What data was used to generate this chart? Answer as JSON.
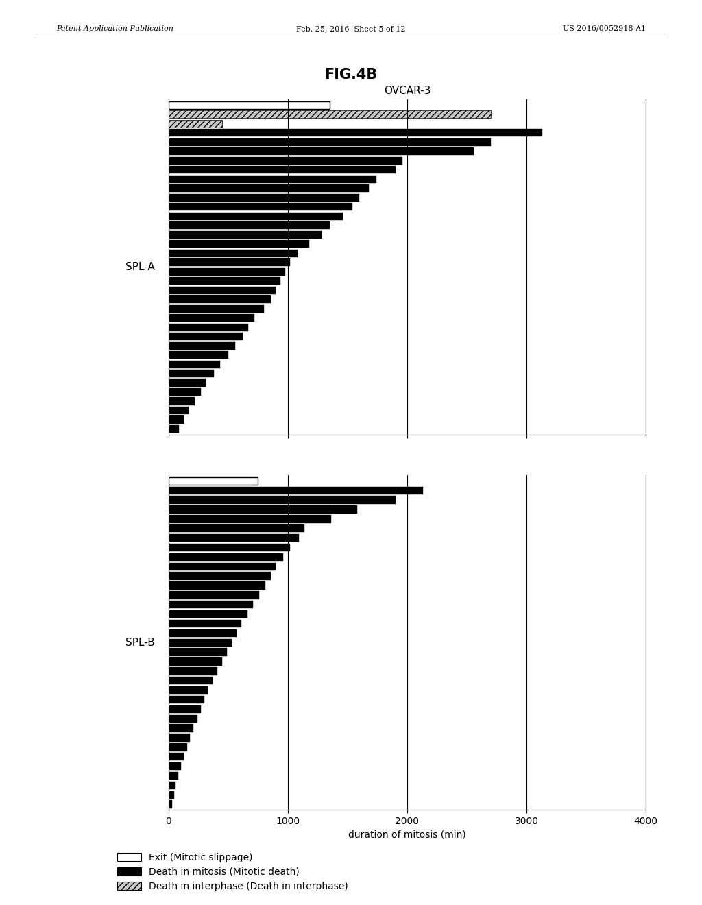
{
  "fig_title": "FIG.4B",
  "chart_title": "OVCAR-3",
  "xlabel": "duration of mitosis (min)",
  "xlim": [
    0,
    4000
  ],
  "xticks": [
    0,
    1000,
    2000,
    3000,
    4000
  ],
  "vlines": [
    1000,
    2000,
    3000,
    4000
  ],
  "header_text_left": "Patent Application Publication",
  "header_text_mid": "Feb. 25, 2016  Sheet 5 of 12",
  "header_text_right": "US 2016/0052918 A1",
  "spla_label": "SPL-A",
  "splb_label": "SPL-B",
  "legend": [
    {
      "label": "Exit (Mitotic slippage)",
      "color": "white",
      "hatch": null
    },
    {
      "label": "Death in mitosis (Mitotic death)",
      "color": "black",
      "hatch": null
    },
    {
      "label": "Death in interphase (Death in interphase)",
      "color": "#c8c8c8",
      "hatch": "////"
    }
  ],
  "spla_bars": [
    {
      "value": 1350,
      "type": "white"
    },
    {
      "value": 2700,
      "type": "gray"
    },
    {
      "value": 450,
      "type": "gray"
    },
    {
      "value": 3130,
      "type": "black"
    },
    {
      "value": 2700,
      "type": "black"
    },
    {
      "value": 2560,
      "type": "black"
    },
    {
      "value": 1960,
      "type": "black"
    },
    {
      "value": 1900,
      "type": "black"
    },
    {
      "value": 1740,
      "type": "black"
    },
    {
      "value": 1680,
      "type": "black"
    },
    {
      "value": 1600,
      "type": "black"
    },
    {
      "value": 1540,
      "type": "black"
    },
    {
      "value": 1460,
      "type": "black"
    },
    {
      "value": 1350,
      "type": "black"
    },
    {
      "value": 1280,
      "type": "black"
    },
    {
      "value": 1180,
      "type": "black"
    },
    {
      "value": 1080,
      "type": "black"
    },
    {
      "value": 1020,
      "type": "black"
    },
    {
      "value": 980,
      "type": "black"
    },
    {
      "value": 940,
      "type": "black"
    },
    {
      "value": 900,
      "type": "black"
    },
    {
      "value": 860,
      "type": "black"
    },
    {
      "value": 800,
      "type": "black"
    },
    {
      "value": 720,
      "type": "black"
    },
    {
      "value": 670,
      "type": "black"
    },
    {
      "value": 620,
      "type": "black"
    },
    {
      "value": 560,
      "type": "black"
    },
    {
      "value": 500,
      "type": "black"
    },
    {
      "value": 430,
      "type": "black"
    },
    {
      "value": 380,
      "type": "black"
    },
    {
      "value": 310,
      "type": "black"
    },
    {
      "value": 270,
      "type": "black"
    },
    {
      "value": 220,
      "type": "black"
    },
    {
      "value": 170,
      "type": "black"
    },
    {
      "value": 130,
      "type": "black"
    },
    {
      "value": 90,
      "type": "black"
    }
  ],
  "splb_bars": [
    {
      "value": 750,
      "type": "white"
    },
    {
      "value": 2130,
      "type": "black"
    },
    {
      "value": 1900,
      "type": "black"
    },
    {
      "value": 1580,
      "type": "black"
    },
    {
      "value": 1360,
      "type": "black"
    },
    {
      "value": 1140,
      "type": "black"
    },
    {
      "value": 1090,
      "type": "black"
    },
    {
      "value": 1020,
      "type": "black"
    },
    {
      "value": 960,
      "type": "black"
    },
    {
      "value": 900,
      "type": "black"
    },
    {
      "value": 860,
      "type": "black"
    },
    {
      "value": 810,
      "type": "black"
    },
    {
      "value": 760,
      "type": "black"
    },
    {
      "value": 710,
      "type": "black"
    },
    {
      "value": 660,
      "type": "black"
    },
    {
      "value": 610,
      "type": "black"
    },
    {
      "value": 570,
      "type": "black"
    },
    {
      "value": 530,
      "type": "black"
    },
    {
      "value": 490,
      "type": "black"
    },
    {
      "value": 450,
      "type": "black"
    },
    {
      "value": 410,
      "type": "black"
    },
    {
      "value": 370,
      "type": "black"
    },
    {
      "value": 330,
      "type": "black"
    },
    {
      "value": 300,
      "type": "black"
    },
    {
      "value": 270,
      "type": "black"
    },
    {
      "value": 240,
      "type": "black"
    },
    {
      "value": 210,
      "type": "black"
    },
    {
      "value": 180,
      "type": "black"
    },
    {
      "value": 155,
      "type": "black"
    },
    {
      "value": 130,
      "type": "black"
    },
    {
      "value": 105,
      "type": "black"
    },
    {
      "value": 80,
      "type": "black"
    },
    {
      "value": 60,
      "type": "black"
    },
    {
      "value": 45,
      "type": "black"
    },
    {
      "value": 30,
      "type": "black"
    }
  ]
}
